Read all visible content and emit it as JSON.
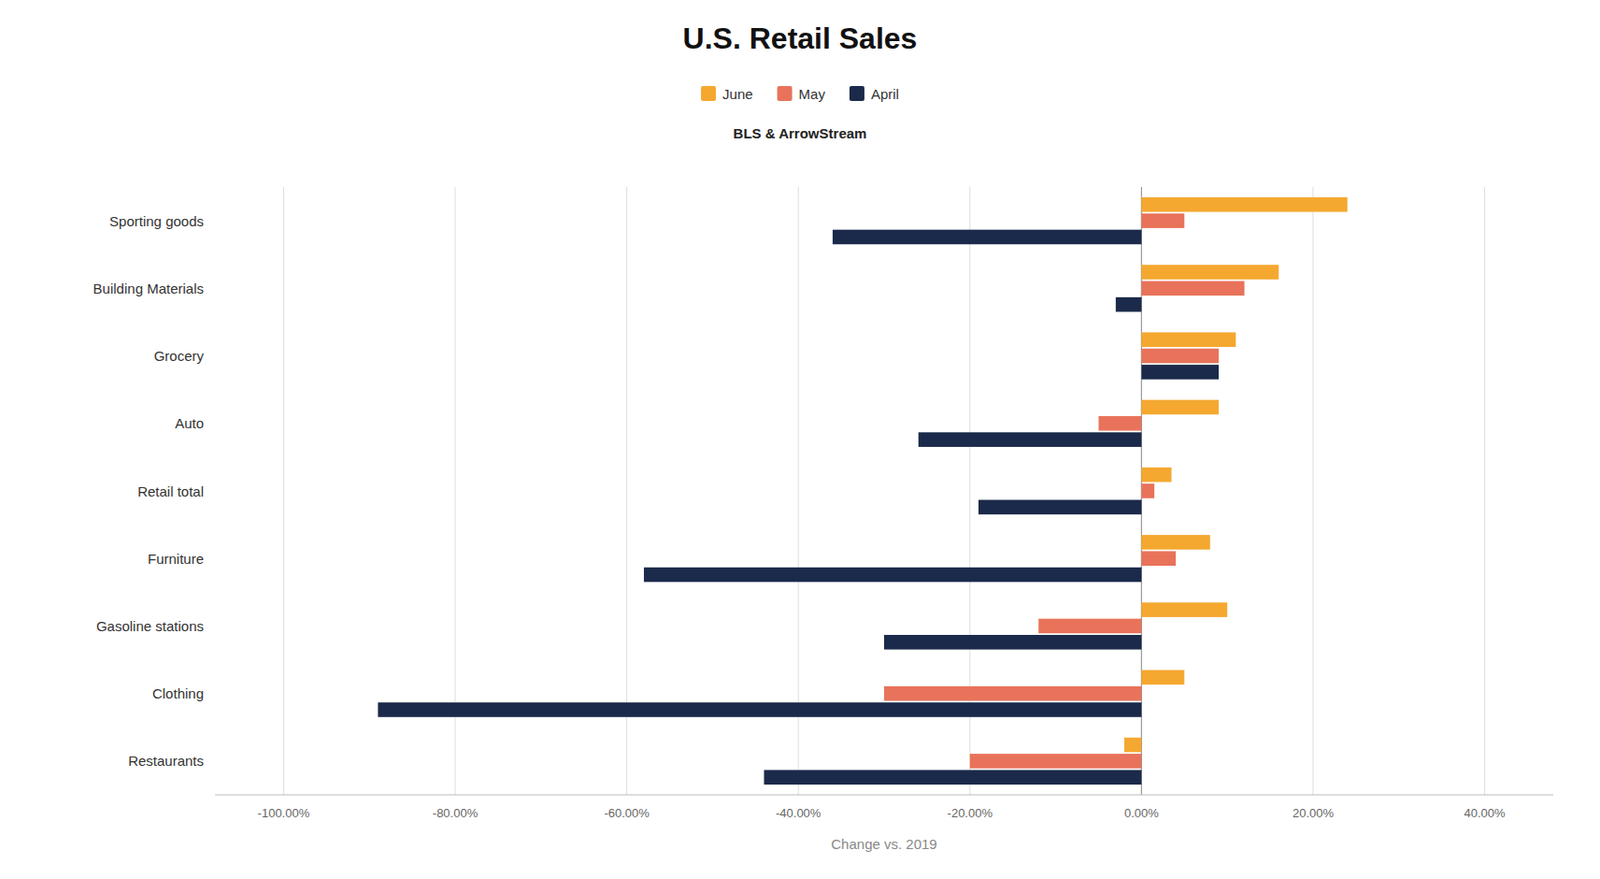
{
  "chart_data": {
    "type": "bar",
    "orientation": "horizontal",
    "title": "U.S. Retail Sales",
    "subtitle": "BLS & ArrowStream",
    "xlabel": "Change vs. 2019",
    "categories": [
      "Sporting goods",
      "Building Materials",
      "Grocery",
      "Auto",
      "Retail total",
      "Furniture",
      "Gasoline stations",
      "Clothing",
      "Restaurants"
    ],
    "series": [
      {
        "name": "June",
        "color": "#F5A830",
        "values": [
          24.0,
          16.0,
          11.0,
          9.0,
          3.5,
          8.0,
          10.0,
          5.0,
          -2.0
        ]
      },
      {
        "name": "May",
        "color": "#E8735A",
        "values": [
          5.0,
          12.0,
          9.0,
          -5.0,
          1.5,
          4.0,
          -12.0,
          -30.0,
          -20.0
        ]
      },
      {
        "name": "April",
        "color": "#1B2A4A",
        "values": [
          -36.0,
          -3.0,
          9.0,
          -26.0,
          -19.0,
          -58.0,
          -30.0,
          -89.0,
          -44.0
        ]
      }
    ],
    "xlim": [
      -108,
      48
    ],
    "xticks": [
      {
        "value": -100,
        "label": "-100.00%"
      },
      {
        "value": -80,
        "label": "-80.00%"
      },
      {
        "value": -60,
        "label": "-60.00%"
      },
      {
        "value": -40,
        "label": "-40.00%"
      },
      {
        "value": -20,
        "label": "-20.00%"
      },
      {
        "value": 0,
        "label": "0.00%"
      },
      {
        "value": 20,
        "label": "20.00%"
      },
      {
        "value": 40,
        "label": "40.00%"
      }
    ],
    "grid": true,
    "legend": "top"
  }
}
